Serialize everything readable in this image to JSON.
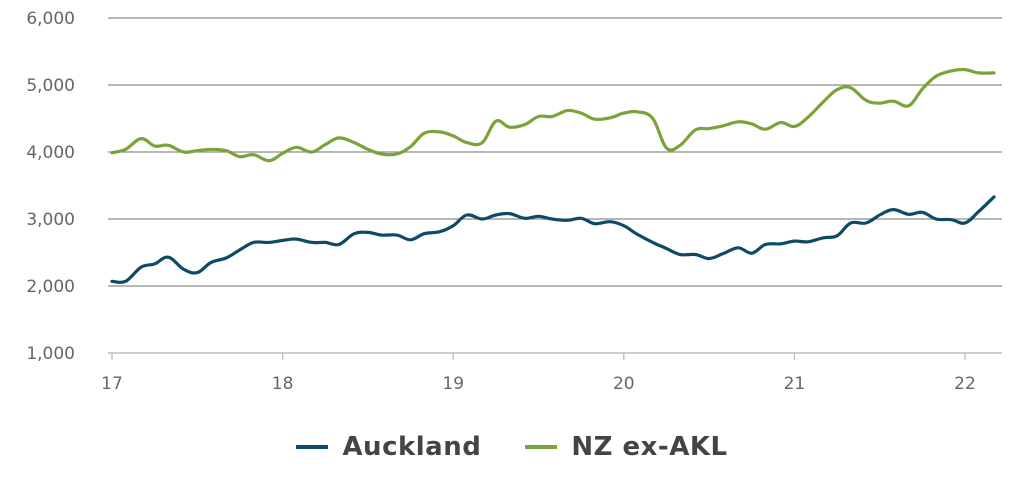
{
  "chart_data": {
    "type": "line",
    "title": "",
    "xlabel": "",
    "ylabel": "",
    "xlim": [
      17,
      22.2
    ],
    "ylim": [
      1000,
      6000
    ],
    "x_ticks": [
      17,
      18,
      19,
      20,
      21,
      22
    ],
    "x_tick_labels": [
      "17",
      "18",
      "19",
      "20",
      "21",
      "22"
    ],
    "y_ticks": [
      1000,
      2000,
      3000,
      4000,
      5000,
      6000
    ],
    "y_tick_labels": [
      "1,000",
      "2,000",
      "3,000",
      "4,000",
      "5,000",
      "6,000"
    ],
    "grid": "horizontal",
    "legend_position": "bottom-center",
    "series": [
      {
        "name": "Auckland",
        "color": "#0e4a66",
        "points": [
          [
            17.0,
            2070
          ],
          [
            17.08,
            2070
          ],
          [
            17.17,
            2280
          ],
          [
            17.25,
            2330
          ],
          [
            17.33,
            2430
          ],
          [
            17.42,
            2250
          ],
          [
            17.5,
            2200
          ],
          [
            17.58,
            2350
          ],
          [
            17.67,
            2420
          ],
          [
            17.75,
            2540
          ],
          [
            17.83,
            2650
          ],
          [
            17.92,
            2650
          ],
          [
            18.0,
            2680
          ],
          [
            18.08,
            2700
          ],
          [
            18.17,
            2650
          ],
          [
            18.25,
            2650
          ],
          [
            18.33,
            2620
          ],
          [
            18.42,
            2780
          ],
          [
            18.5,
            2800
          ],
          [
            18.58,
            2760
          ],
          [
            18.67,
            2760
          ],
          [
            18.75,
            2690
          ],
          [
            18.83,
            2780
          ],
          [
            18.92,
            2810
          ],
          [
            19.0,
            2900
          ],
          [
            19.08,
            3060
          ],
          [
            19.17,
            3000
          ],
          [
            19.25,
            3060
          ],
          [
            19.33,
            3080
          ],
          [
            19.42,
            3010
          ],
          [
            19.5,
            3040
          ],
          [
            19.58,
            3000
          ],
          [
            19.67,
            2980
          ],
          [
            19.75,
            3010
          ],
          [
            19.83,
            2930
          ],
          [
            19.92,
            2960
          ],
          [
            20.0,
            2900
          ],
          [
            20.08,
            2770
          ],
          [
            20.17,
            2650
          ],
          [
            20.25,
            2560
          ],
          [
            20.33,
            2470
          ],
          [
            20.42,
            2470
          ],
          [
            20.5,
            2410
          ],
          [
            20.58,
            2480
          ],
          [
            20.67,
            2570
          ],
          [
            20.75,
            2490
          ],
          [
            20.83,
            2620
          ],
          [
            20.92,
            2630
          ],
          [
            21.0,
            2670
          ],
          [
            21.08,
            2660
          ],
          [
            21.17,
            2720
          ],
          [
            21.25,
            2750
          ],
          [
            21.33,
            2940
          ],
          [
            21.42,
            2940
          ],
          [
            21.5,
            3060
          ],
          [
            21.58,
            3140
          ],
          [
            21.67,
            3070
          ],
          [
            21.75,
            3100
          ],
          [
            21.83,
            3000
          ],
          [
            21.92,
            2990
          ],
          [
            22.0,
            2940
          ],
          [
            22.08,
            3110
          ],
          [
            22.17,
            3330
          ]
        ]
      },
      {
        "name": "NZ ex-AKL",
        "color": "#7ba33a",
        "points": [
          [
            17.0,
            3990
          ],
          [
            17.08,
            4040
          ],
          [
            17.17,
            4200
          ],
          [
            17.25,
            4090
          ],
          [
            17.33,
            4100
          ],
          [
            17.42,
            4000
          ],
          [
            17.5,
            4020
          ],
          [
            17.58,
            4040
          ],
          [
            17.67,
            4020
          ],
          [
            17.75,
            3930
          ],
          [
            17.83,
            3960
          ],
          [
            17.92,
            3870
          ],
          [
            18.0,
            3980
          ],
          [
            18.08,
            4070
          ],
          [
            18.17,
            4000
          ],
          [
            18.25,
            4110
          ],
          [
            18.33,
            4210
          ],
          [
            18.42,
            4140
          ],
          [
            18.5,
            4040
          ],
          [
            18.58,
            3970
          ],
          [
            18.67,
            3970
          ],
          [
            18.75,
            4080
          ],
          [
            18.83,
            4280
          ],
          [
            18.92,
            4300
          ],
          [
            19.0,
            4240
          ],
          [
            19.08,
            4140
          ],
          [
            19.17,
            4140
          ],
          [
            19.25,
            4460
          ],
          [
            19.33,
            4370
          ],
          [
            19.42,
            4410
          ],
          [
            19.5,
            4530
          ],
          [
            19.58,
            4530
          ],
          [
            19.67,
            4620
          ],
          [
            19.75,
            4580
          ],
          [
            19.83,
            4490
          ],
          [
            19.92,
            4510
          ],
          [
            20.0,
            4580
          ],
          [
            20.08,
            4600
          ],
          [
            20.17,
            4500
          ],
          [
            20.25,
            4060
          ],
          [
            20.33,
            4100
          ],
          [
            20.42,
            4330
          ],
          [
            20.5,
            4350
          ],
          [
            20.58,
            4390
          ],
          [
            20.67,
            4450
          ],
          [
            20.75,
            4420
          ],
          [
            20.83,
            4340
          ],
          [
            20.92,
            4440
          ],
          [
            21.0,
            4380
          ],
          [
            21.08,
            4520
          ],
          [
            21.17,
            4750
          ],
          [
            21.25,
            4930
          ],
          [
            21.33,
            4960
          ],
          [
            21.42,
            4770
          ],
          [
            21.5,
            4730
          ],
          [
            21.58,
            4760
          ],
          [
            21.67,
            4690
          ],
          [
            21.75,
            4940
          ],
          [
            21.83,
            5130
          ],
          [
            21.92,
            5210
          ],
          [
            22.0,
            5230
          ],
          [
            22.08,
            5180
          ],
          [
            22.17,
            5180
          ]
        ]
      }
    ]
  }
}
